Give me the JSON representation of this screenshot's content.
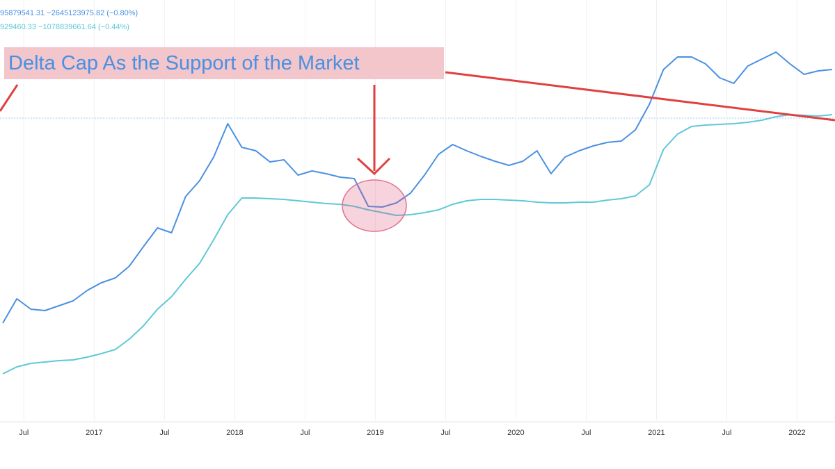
{
  "chart_data": {
    "type": "line",
    "annotation": "Delta Cap As the Support of the Market",
    "readouts": [
      "95879541.31   −2645123975.82 (−0.80%)",
      "929460.33   −1078839661.64 (−0.44%)"
    ],
    "x": [
      2016.35,
      2016.45,
      2016.55,
      2016.65,
      2016.75,
      2016.85,
      2016.95,
      2017.05,
      2017.15,
      2017.25,
      2017.35,
      2017.45,
      2017.55,
      2017.65,
      2017.75,
      2017.85,
      2017.95,
      2018.05,
      2018.15,
      2018.25,
      2018.35,
      2018.45,
      2018.55,
      2018.65,
      2018.75,
      2018.85,
      2018.95,
      2019.05,
      2019.15,
      2019.25,
      2019.35,
      2019.45,
      2019.55,
      2019.65,
      2019.75,
      2019.85,
      2019.95,
      2020.05,
      2020.15,
      2020.25,
      2020.35,
      2020.45,
      2020.55,
      2020.65,
      2020.75,
      2020.85,
      2020.95,
      2021.05,
      2021.15,
      2021.25,
      2021.35,
      2021.45,
      2021.55,
      2021.65,
      2021.75,
      2021.85,
      2021.95,
      2022.05,
      2022.15,
      2022.25
    ],
    "series": [
      {
        "color": "#4a90e2",
        "values": [
          140,
          175,
          160,
          158,
          165,
          172,
          187,
          198,
          205,
          222,
          250,
          277,
          270,
          322,
          345,
          379,
          427,
          393,
          388,
          372,
          375,
          353,
          359,
          355,
          350,
          348,
          308,
          307,
          313,
          327,
          353,
          383,
          397,
          388,
          380,
          373,
          367,
          373,
          388,
          355,
          379,
          388,
          395,
          400,
          402,
          418,
          455,
          505,
          523,
          523,
          513,
          493,
          485,
          510,
          520,
          530,
          513,
          498,
          503,
          505
        ]
      },
      {
        "color": "#5ec8d8",
        "values": [
          67,
          77,
          82,
          84,
          86,
          87,
          91,
          96,
          102,
          117,
          136,
          160,
          178,
          203,
          226,
          260,
          296,
          320,
          320,
          319,
          318,
          316,
          314,
          312,
          311,
          308,
          303,
          299,
          295,
          296,
          299,
          303,
          311,
          316,
          318,
          318,
          317,
          316,
          314,
          313,
          313,
          314,
          314,
          317,
          319,
          323,
          339,
          390,
          412,
          423,
          425,
          426,
          427,
          429,
          432,
          437,
          440,
          439,
          438,
          440
        ]
      }
    ],
    "xlim": [
      2016.33,
      2022.27
    ],
    "xticks": [
      {
        "value": 2016.5,
        "label": "Jul"
      },
      2017,
      {
        "value": 2017.5,
        "label": "Jul"
      },
      2018,
      {
        "value": 2018.5,
        "label": "Jul"
      },
      2019,
      {
        "value": 2019.5,
        "label": "Jul"
      },
      2020,
      {
        "value": 2020.5,
        "label": "Jul"
      },
      2021,
      {
        "value": 2021.5,
        "label": "Jul"
      },
      2022
    ],
    "ylim": [
      0,
      605
    ],
    "grid": true
  }
}
